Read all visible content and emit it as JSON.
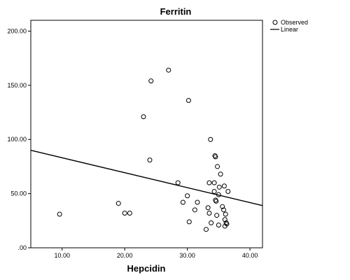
{
  "chart_data": {
    "type": "scatter",
    "title": "Ferritin",
    "xlabel": "Hepcidin",
    "ylabel": "",
    "xlim": [
      5,
      42
    ],
    "ylim": [
      0,
      210
    ],
    "x_ticks": [
      10,
      20,
      30,
      40
    ],
    "x_tick_labels": [
      "10.00",
      "20.00",
      "30.00",
      "40.00"
    ],
    "y_ticks": [
      0,
      50,
      100,
      150,
      200
    ],
    "y_tick_labels": [
      ".00",
      "50.00",
      "100.00",
      "150.00",
      "200.00"
    ],
    "grid": false,
    "legend_position": "top-right",
    "legend": [
      {
        "label": "Observed",
        "marker": "circle"
      },
      {
        "label": "Linear",
        "marker": "line"
      }
    ],
    "series": [
      {
        "name": "Observed",
        "points": [
          [
            9.6,
            31
          ],
          [
            19.0,
            41
          ],
          [
            20.0,
            32
          ],
          [
            20.8,
            32
          ],
          [
            23.0,
            121
          ],
          [
            24.0,
            81
          ],
          [
            24.2,
            154
          ],
          [
            27.0,
            164
          ],
          [
            28.5,
            60
          ],
          [
            29.3,
            42
          ],
          [
            30.0,
            48
          ],
          [
            30.2,
            136
          ],
          [
            30.3,
            24
          ],
          [
            31.2,
            35
          ],
          [
            31.6,
            42
          ],
          [
            33.0,
            17
          ],
          [
            33.3,
            37
          ],
          [
            33.5,
            32
          ],
          [
            33.5,
            60
          ],
          [
            33.7,
            100
          ],
          [
            33.8,
            23
          ],
          [
            34.3,
            60
          ],
          [
            34.3,
            52
          ],
          [
            34.4,
            85
          ],
          [
            34.5,
            84
          ],
          [
            34.5,
            44
          ],
          [
            34.6,
            43
          ],
          [
            34.7,
            30
          ],
          [
            34.8,
            75
          ],
          [
            35.0,
            21
          ],
          [
            35.0,
            49
          ],
          [
            35.1,
            56
          ],
          [
            35.3,
            68
          ],
          [
            35.6,
            38
          ],
          [
            35.8,
            35
          ],
          [
            35.9,
            57
          ],
          [
            36.0,
            26
          ],
          [
            36.0,
            20
          ],
          [
            36.1,
            31
          ],
          [
            36.2,
            23
          ],
          [
            36.3,
            22
          ],
          [
            36.5,
            52
          ]
        ]
      },
      {
        "name": "Linear",
        "line": [
          [
            5,
            90
          ],
          [
            42,
            39
          ]
        ]
      }
    ]
  }
}
